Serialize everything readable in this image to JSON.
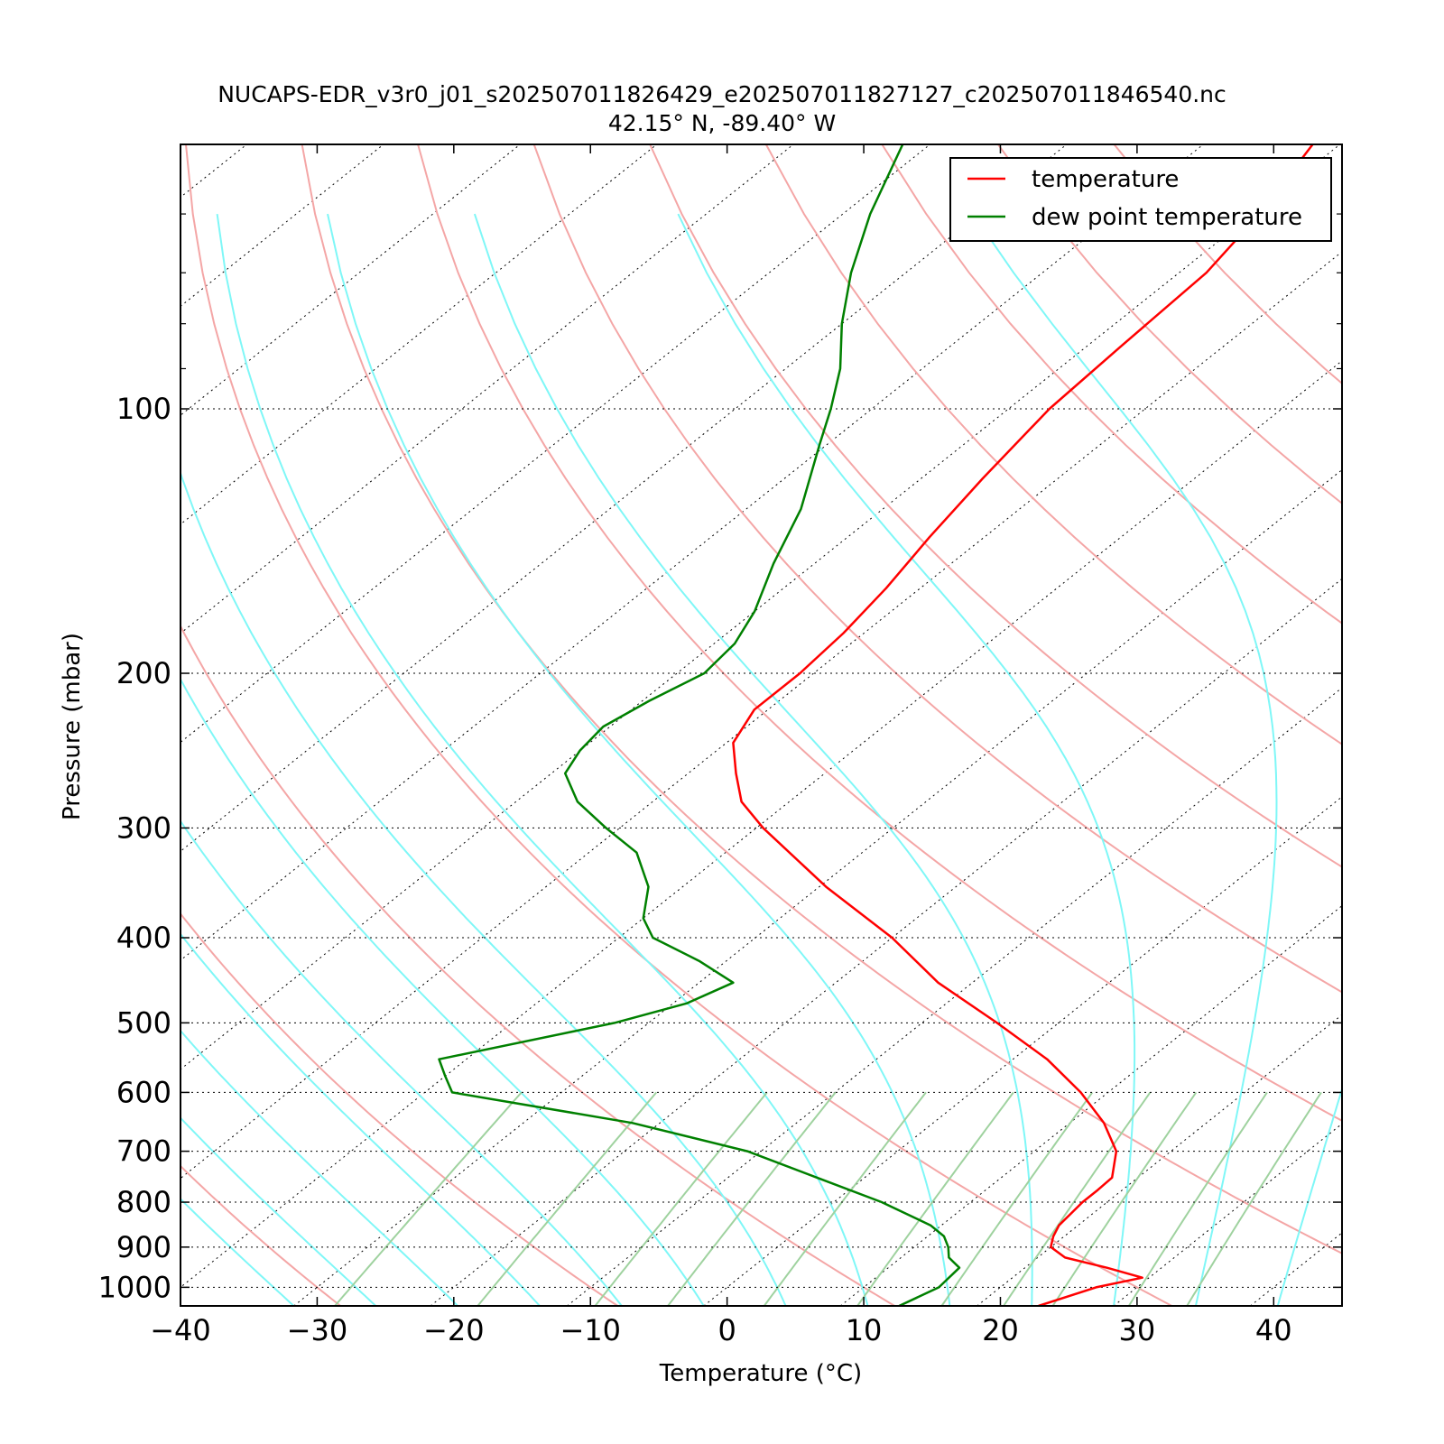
{
  "chart_data": {
    "type": "line",
    "title": "NUCAPS-EDR_v3r0_j01_s202507011826429_e202507011827127_c202507011846540.nc",
    "subtitle": "42.15° N, -89.40° W",
    "xlabel": "Temperature (°C)",
    "ylabel": "Pressure (mbar)",
    "xlim": [
      -40,
      45
    ],
    "ylim": [
      1050,
      50
    ],
    "y_scale": "log",
    "skew": "skew-T",
    "x_ticks": [
      "−40",
      "−30",
      "−20",
      "−10",
      "0",
      "10",
      "20",
      "30",
      "40"
    ],
    "y_ticks": [
      "100",
      "200",
      "300",
      "400",
      "500",
      "600",
      "700",
      "800",
      "900",
      "1000"
    ],
    "grid": "dotted horizontal at labeled pressures and skewed isotherms",
    "legend_position": "top-right",
    "background_lines": {
      "dry_adiabats_color": "#f4a6a6",
      "moist_adiabats_color": "#7ff7f7",
      "mixing_ratio_color": "#9fd29f",
      "isotherm_color": "#000000"
    },
    "series": [
      {
        "name": "temperature",
        "color": "#ff0000",
        "p": [
          1050,
          1000,
          975,
          950,
          925,
          900,
          875,
          850,
          825,
          800,
          775,
          750,
          700,
          650,
          600,
          550,
          500,
          450,
          400,
          350,
          300,
          280,
          260,
          240,
          220,
          200,
          180,
          160,
          140,
          120,
          100,
          85,
          70,
          60,
          50
        ],
        "t": [
          24.5,
          27,
          29.5,
          26,
          22,
          20,
          19.2,
          18.6,
          18.4,
          18.2,
          18.2,
          18.1,
          16,
          12.5,
          8,
          2.5,
          -4.5,
          -12.5,
          -20,
          -29.5,
          -39.5,
          -43.5,
          -46.5,
          -49.5,
          -51,
          -51,
          -51.5,
          -52.5,
          -54,
          -55.5,
          -57,
          -57.5,
          -58,
          -59.5,
          -62
        ]
      },
      {
        "name": "dew point temperature",
        "color": "#008000",
        "p": [
          1050,
          1000,
          950,
          925,
          900,
          875,
          850,
          800,
          750,
          700,
          650,
          600,
          575,
          550,
          500,
          475,
          450,
          425,
          400,
          380,
          350,
          320,
          300,
          280,
          260,
          245,
          230,
          215,
          200,
          185,
          170,
          150,
          130,
          110,
          100,
          90,
          80,
          70,
          60,
          50
        ],
        "t": [
          14.3,
          15.5,
          15.2,
          13.5,
          12.5,
          11.2,
          9.2,
          3.5,
          -3.5,
          -11,
          -22,
          -38,
          -40,
          -42,
          -32.5,
          -29,
          -27.5,
          -32,
          -37.5,
          -40,
          -42.5,
          -46.5,
          -51,
          -55.5,
          -59,
          -60,
          -60.5,
          -59.5,
          -58,
          -58.5,
          -60,
          -63,
          -66,
          -70.5,
          -73,
          -76,
          -80,
          -84,
          -88,
          -92
        ]
      }
    ]
  }
}
